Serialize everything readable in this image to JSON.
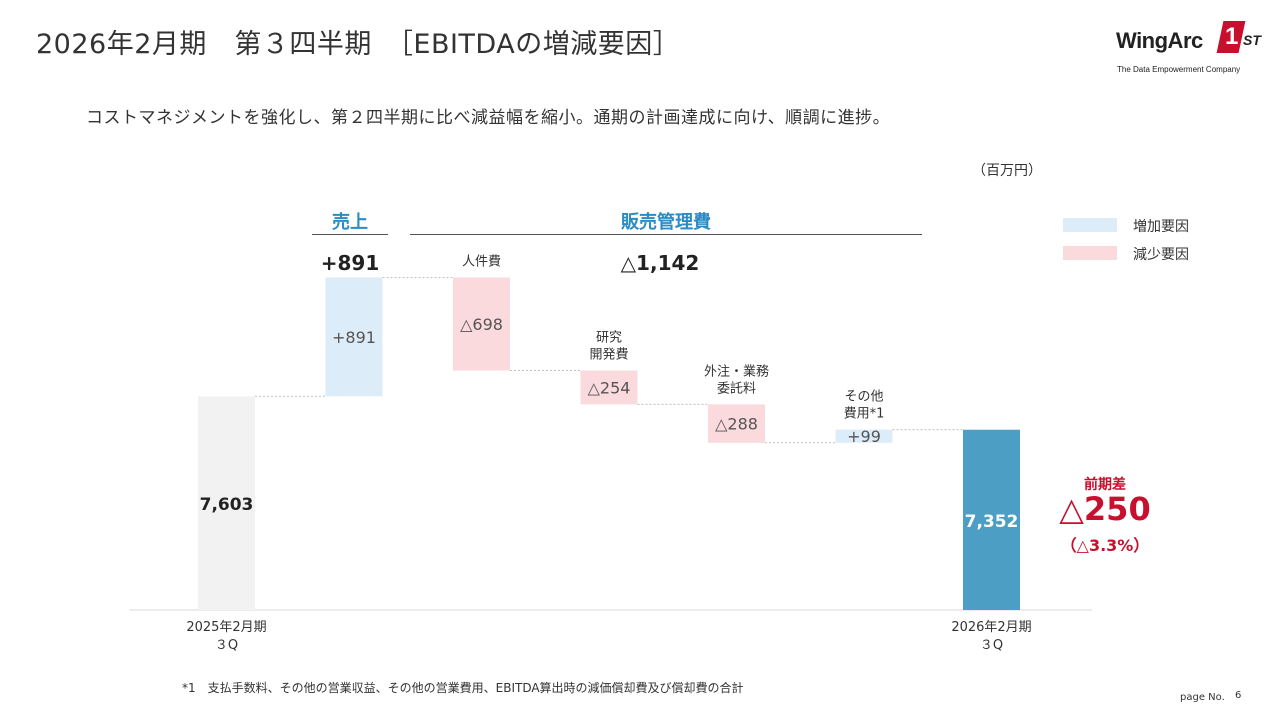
{
  "header": {
    "title": "2026年2月期　第３四半期　［EBITDAの増減要因］",
    "subtitle": "コストマネジメントを強化し、第２四半期に比べ減益幅を縮小。通期の計画達成に向け、順調に進捗。"
  },
  "logo": {
    "main": "WingArc",
    "mark": "1",
    "suffix": "ST",
    "tagline": "The Data Empowerment Company"
  },
  "unit_label": "（百万円）",
  "legend": {
    "increase": "増加要因",
    "decrease": "減少要因"
  },
  "groups": {
    "sales": {
      "title": "売上",
      "value": "+891"
    },
    "sga": {
      "title": "販売管理費",
      "value": "△1,142"
    }
  },
  "diff": {
    "title": "前期差",
    "value": "△250",
    "pct": "（△3.3%）"
  },
  "footnote": "*1　支払手数料、その他の営業収益、その他の営業費用、EBITDA算出時の減価償却費及び償却費の合計",
  "page": {
    "label": "page No.",
    "number": "6"
  },
  "colors": {
    "total_start": "#f2f2f2",
    "total_end": "#4d9ec4",
    "increase": "#dcecf8",
    "decrease": "#fadadd",
    "accent_red": "#c8102e",
    "accent_blue": "#2b8cc4"
  },
  "chart_data": {
    "type": "waterfall",
    "ylabel": "百万円",
    "ylim": [
      6000,
      8700
    ],
    "steps": [
      {
        "label": [
          "2025年2月期",
          "３Q"
        ],
        "kind": "total",
        "value": 7603,
        "display": "7,603"
      },
      {
        "label": [],
        "kind": "increase",
        "value": 891,
        "display": "+891"
      },
      {
        "label": [
          "人件費"
        ],
        "kind": "decrease",
        "value": -698,
        "display": "△698"
      },
      {
        "label": [
          "研究",
          "開発費"
        ],
        "kind": "decrease",
        "value": -254,
        "display": "△254"
      },
      {
        "label": [
          "外注・業務",
          "委託料"
        ],
        "kind": "decrease",
        "value": -288,
        "display": "△288"
      },
      {
        "label": [
          "その他",
          "費用*1"
        ],
        "kind": "increase",
        "value": 99,
        "display": "+99"
      },
      {
        "label": [
          "2026年2月期",
          "３Q"
        ],
        "kind": "total",
        "value": 7352,
        "display": "7,352"
      }
    ]
  }
}
